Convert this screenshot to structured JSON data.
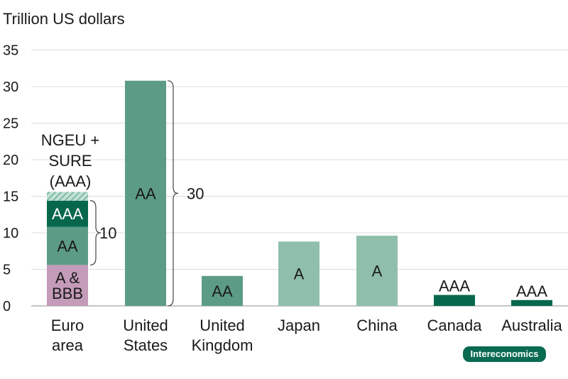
{
  "chart_data": {
    "type": "bar",
    "ylabel": "Trillion US dollars",
    "ylim": [
      0,
      35
    ],
    "yticks": [
      "0",
      "5",
      "10",
      "15",
      "20",
      "25",
      "30",
      "35"
    ],
    "grid": true,
    "categories": [
      "Euro area",
      "United States",
      "United Kingdom",
      "Japan",
      "China",
      "Canada",
      "Australia"
    ],
    "category_lines": [
      [
        "Euro",
        "area"
      ],
      [
        "United",
        "States"
      ],
      [
        "United",
        "Kingdom"
      ],
      [
        "Japan"
      ],
      [
        "China"
      ],
      [
        "Canada"
      ],
      [
        "Australia"
      ]
    ],
    "bars": [
      {
        "category": "Euro area",
        "segments": [
          {
            "rating": "A & BBB",
            "value": 5.6,
            "color": "#c49bb8",
            "label_lines": [
              "A &",
              "BBB"
            ]
          },
          {
            "rating": "AA",
            "value": 5.2,
            "color": "#5c9c87",
            "label_lines": [
              "AA"
            ]
          },
          {
            "rating": "AAA",
            "value": 3.6,
            "color": "#07674c",
            "label_lines": [
              "AAA"
            ],
            "label_color": "#ffffff"
          },
          {
            "rating": "NGEU + SURE (AAA)",
            "value": 1.2,
            "color": "#9ccdb9",
            "hatched": true,
            "label_lines": []
          }
        ]
      },
      {
        "category": "United States",
        "segments": [
          {
            "rating": "AA",
            "value": 30.8,
            "color": "#5c9c87",
            "label_lines": [
              "AA"
            ]
          }
        ]
      },
      {
        "category": "United Kingdom",
        "segments": [
          {
            "rating": "AA",
            "value": 4.1,
            "color": "#5c9c87",
            "label_lines": [
              "AA"
            ]
          }
        ]
      },
      {
        "category": "Japan",
        "segments": [
          {
            "rating": "A",
            "value": 8.8,
            "color": "#8fbfab",
            "label_lines": [
              "A"
            ]
          }
        ]
      },
      {
        "category": "China",
        "segments": [
          {
            "rating": "A",
            "value": 9.6,
            "color": "#8fbfab",
            "label_lines": [
              "A"
            ]
          }
        ]
      },
      {
        "category": "Canada",
        "segments": [
          {
            "rating": "AAA",
            "value": 1.5,
            "color": "#07674c",
            "label_lines": [
              "AAA"
            ],
            "label_outside": true
          }
        ]
      },
      {
        "category": "Australia",
        "segments": [
          {
            "rating": "AAA",
            "value": 0.8,
            "color": "#07674c",
            "label_lines": [
              "AAA"
            ],
            "label_outside": true
          }
        ]
      }
    ],
    "annotations": {
      "ngeu_lines": [
        "NGEU +",
        "SURE",
        "(AAA)"
      ],
      "euro_brace_label": "10",
      "us_brace_label": "30"
    }
  },
  "brand": "Intereconomics"
}
